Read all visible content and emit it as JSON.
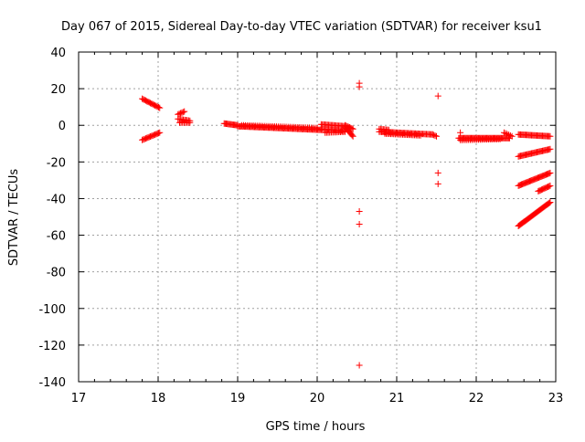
{
  "chart_data": {
    "type": "scatter",
    "title": "Day 067 of 2015, Sidereal Day-to-day VTEC variation (SDTVAR) for receiver ksu1",
    "xlabel": "GPS time / hours",
    "ylabel": "SDTVAR / TECUs",
    "xlim": [
      17,
      23
    ],
    "ylim": [
      -140,
      40
    ],
    "xticks": [
      "17",
      "18",
      "19",
      "20",
      "21",
      "22",
      "23"
    ],
    "yticks": [
      "40",
      "20",
      "0",
      "-20",
      "-40",
      "-60",
      "-80",
      "-100",
      "-120",
      "-140"
    ],
    "grid": true,
    "marker": "+",
    "series": [
      {
        "name": "SDTVAR",
        "color": "#ff0000",
        "segments": [
          {
            "x0": 17.8,
            "x1": 18.02,
            "y0": 14.5,
            "y1": 9.5,
            "n": 16
          },
          {
            "x0": 17.8,
            "x1": 18.02,
            "y0": -8.0,
            "y1": -4.0,
            "n": 16
          },
          {
            "x0": 18.25,
            "x1": 18.33,
            "y0": 6.0,
            "y1": 7.5,
            "n": 6
          },
          {
            "x0": 18.25,
            "x1": 18.4,
            "y0": 3.5,
            "y1": 2.5,
            "n": 10
          },
          {
            "x0": 18.27,
            "x1": 18.4,
            "y0": 1.5,
            "y1": 1.5,
            "n": 8
          },
          {
            "x0": 18.83,
            "x1": 19.0,
            "y0": 1.0,
            "y1": 0.0,
            "n": 14
          },
          {
            "x0": 19.0,
            "x1": 20.05,
            "y0": -0.5,
            "y1": -2.5,
            "n": 75
          },
          {
            "x0": 19.05,
            "x1": 20.0,
            "y0": 0.0,
            "y1": -1.5,
            "n": 40
          },
          {
            "x0": 20.05,
            "x1": 20.35,
            "y0": 0.5,
            "y1": -0.5,
            "n": 20
          },
          {
            "x0": 20.05,
            "x1": 20.35,
            "y0": -2.0,
            "y1": -3.0,
            "n": 20
          },
          {
            "x0": 20.1,
            "x1": 20.35,
            "y0": -4.0,
            "y1": -3.5,
            "n": 14
          },
          {
            "x0": 20.35,
            "x1": 20.45,
            "y0": -1.0,
            "y1": -6.0,
            "n": 10
          },
          {
            "x0": 20.35,
            "x1": 20.45,
            "y0": 0.0,
            "y1": -2.0,
            "n": 8
          },
          {
            "x0": 20.78,
            "x1": 20.9,
            "y0": -2.0,
            "y1": -2.5,
            "n": 8
          },
          {
            "x0": 20.78,
            "x1": 21.45,
            "y0": -3.5,
            "y1": -5.0,
            "n": 45
          },
          {
            "x0": 20.85,
            "x1": 21.3,
            "y0": -4.5,
            "y1": -5.5,
            "n": 25
          },
          {
            "x0": 21.45,
            "x1": 21.5,
            "y0": -5.0,
            "y1": -6.0,
            "n": 4
          },
          {
            "x0": 21.78,
            "x1": 22.42,
            "y0": -7.0,
            "y1": -7.0,
            "n": 50
          },
          {
            "x0": 21.8,
            "x1": 22.3,
            "y0": -8.0,
            "y1": -7.5,
            "n": 25
          },
          {
            "x0": 22.35,
            "x1": 22.45,
            "y0": -4.0,
            "y1": -6.0,
            "n": 6
          },
          {
            "x0": 22.53,
            "x1": 22.93,
            "y0": -5.0,
            "y1": -6.0,
            "n": 30
          },
          {
            "x0": 22.53,
            "x1": 22.93,
            "y0": -17.0,
            "y1": -13.0,
            "n": 30
          },
          {
            "x0": 22.53,
            "x1": 22.93,
            "y0": -33.0,
            "y1": -26.0,
            "n": 32
          },
          {
            "x0": 22.78,
            "x1": 22.93,
            "y0": -36.0,
            "y1": -33.0,
            "n": 12
          },
          {
            "x0": 22.53,
            "x1": 22.93,
            "y0": -55.0,
            "y1": -42.0,
            "n": 36
          }
        ],
        "points": [
          {
            "x": 20.53,
            "y": 23
          },
          {
            "x": 20.53,
            "y": 21
          },
          {
            "x": 20.53,
            "y": -47
          },
          {
            "x": 20.53,
            "y": -54
          },
          {
            "x": 20.53,
            "y": -131
          },
          {
            "x": 21.52,
            "y": 16
          },
          {
            "x": 21.52,
            "y": -26
          },
          {
            "x": 21.52,
            "y": -32
          },
          {
            "x": 21.8,
            "y": -4
          }
        ]
      }
    ]
  }
}
